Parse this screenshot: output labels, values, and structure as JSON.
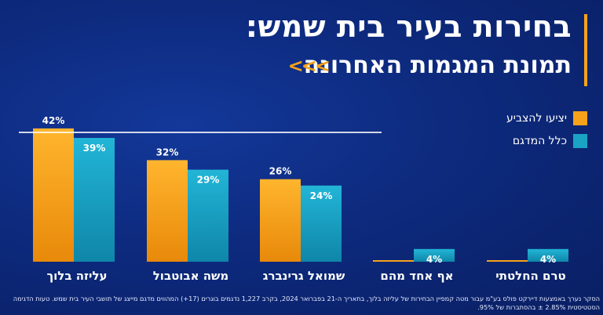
{
  "title": "בחירות בעיר בית שמש:",
  "subtitle": "תמונת המגמות האחרונה",
  "chevrons": "<<<",
  "colors": {
    "likely_voters": "#f7a21b",
    "all_sample": "#1aa3c4",
    "accent": "#f7a21b"
  },
  "chart_data": {
    "type": "bar",
    "categories": [
      "עליזה בלוך",
      "משה אבוטבול",
      "שמואל גרינברג",
      "אף אחד מהם",
      "טרם החלטתי"
    ],
    "series": [
      {
        "name": "יציעו להצביע",
        "values": [
          42,
          32,
          26,
          0,
          0
        ],
        "labels": [
          "42%",
          "32%",
          "26%",
          "",
          ""
        ]
      },
      {
        "name": "כלל המדגם",
        "values": [
          39,
          29,
          24,
          4,
          4
        ],
        "labels": [
          "39%",
          "29%",
          "24%",
          "4%",
          "4%"
        ]
      }
    ],
    "reference_line": 42,
    "legend_position": "right",
    "ylim": [
      0,
      48
    ]
  },
  "footnote": "הסקר נערך באמצעות דיירקט פולס בע\"מ עבור מטה קמפיין הבחירות של עליזה בלוך, בתאריך ה-21 בפברואר 2024, בקרב 1,227 נדגמים בוגרים (17+) המהווים מדגם מייצג של תושבי העיר בית שמש. טעות הדגימה הסטטיסטית 2.85% ± בהסתברות של 95%."
}
